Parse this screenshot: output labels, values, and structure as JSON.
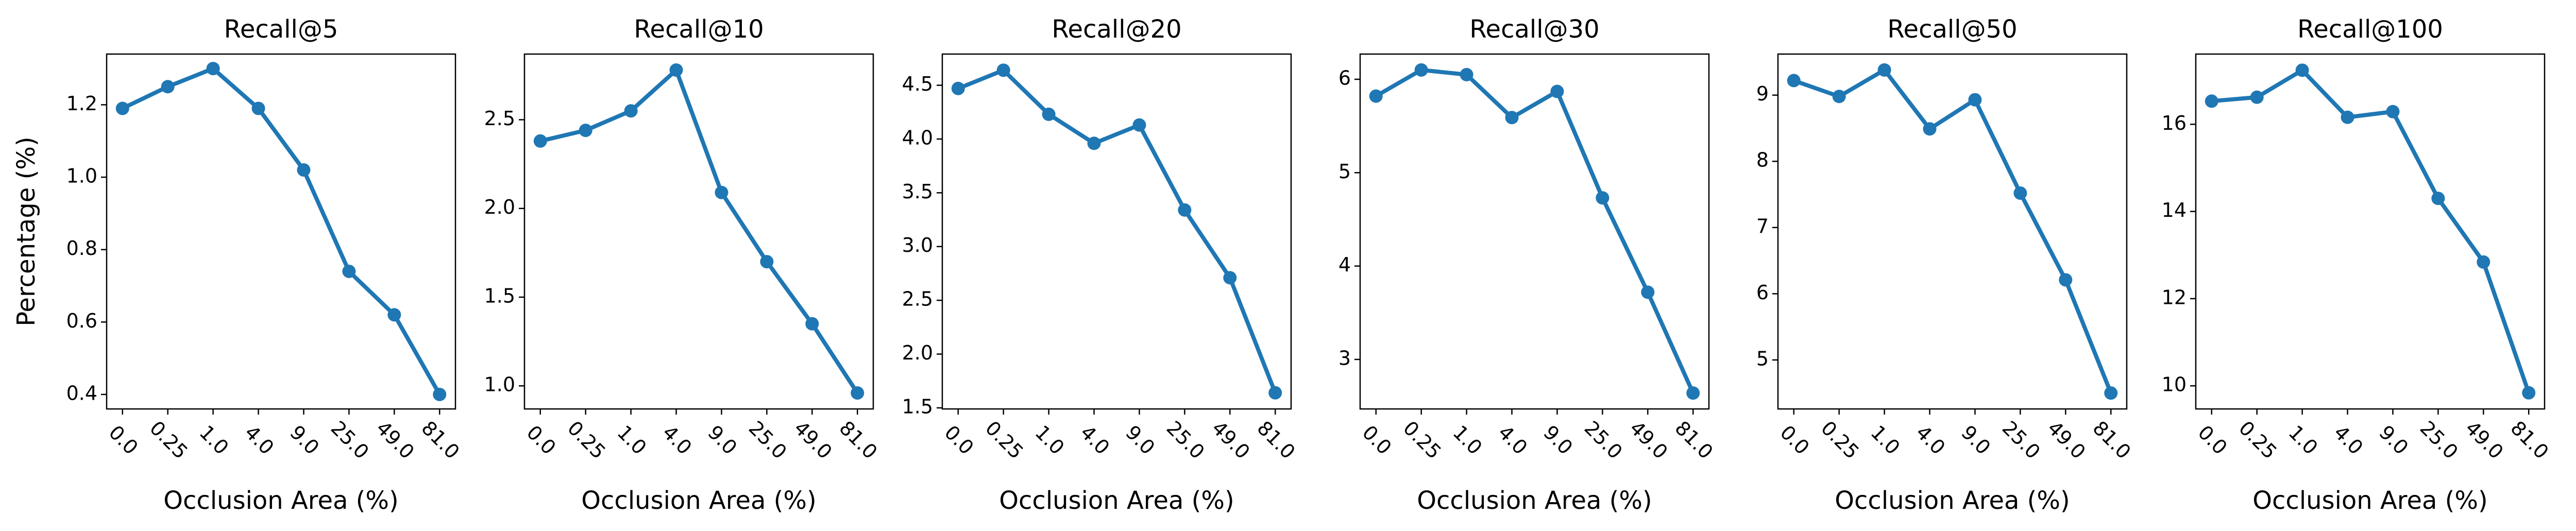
{
  "chart_data": [
    {
      "type": "line",
      "title": "Recall@5",
      "xlabel": "Occlusion Area (%)",
      "ylabel": "Percentage (%)",
      "categories": [
        "0.0",
        "0.25",
        "1.0",
        "4.0",
        "9.0",
        "25.0",
        "49.0",
        "81.0"
      ],
      "values": [
        1.19,
        1.25,
        1.3,
        1.19,
        1.02,
        0.74,
        0.62,
        0.4
      ],
      "color": "#1f77b4",
      "ylim": [
        0.36,
        1.34
      ],
      "yticks": [
        0.4,
        0.6,
        0.8,
        {
          "value": 1,
          "label": "1.0"
        },
        1.2
      ]
    },
    {
      "type": "line",
      "title": "Recall@10",
      "xlabel": "Occlusion Area (%)",
      "categories": [
        "0.0",
        "0.25",
        "1.0",
        "4.0",
        "9.0",
        "25.0",
        "49.0",
        "81.0"
      ],
      "values": [
        2.38,
        2.44,
        2.55,
        2.78,
        2.09,
        1.7,
        1.35,
        0.96
      ],
      "color": "#1f77b4",
      "ylim": [
        0.87,
        2.87
      ],
      "yticks": [
        {
          "value": 1,
          "label": "1.0"
        },
        1.5,
        {
          "value": 2,
          "label": "2.0"
        },
        2.5
      ]
    },
    {
      "type": "line",
      "title": "Recall@20",
      "xlabel": "Occlusion Area (%)",
      "categories": [
        "0.0",
        "0.25",
        "1.0",
        "4.0",
        "9.0",
        "25.0",
        "49.0",
        "81.0"
      ],
      "values": [
        4.47,
        4.64,
        4.23,
        3.96,
        4.13,
        3.34,
        2.71,
        1.64
      ],
      "color": "#1f77b4",
      "ylim": [
        1.49,
        4.79
      ],
      "yticks": [
        1.5,
        {
          "value": 2,
          "label": "2.0"
        },
        2.5,
        {
          "value": 3,
          "label": "3.0"
        },
        3.5,
        {
          "value": 4,
          "label": "4.0"
        },
        4.5
      ]
    },
    {
      "type": "line",
      "title": "Recall@30",
      "xlabel": "Occlusion Area (%)",
      "categories": [
        "0.0",
        "0.25",
        "1.0",
        "4.0",
        "9.0",
        "25.0",
        "49.0",
        "81.0"
      ],
      "values": [
        5.82,
        6.1,
        6.05,
        5.59,
        5.87,
        4.73,
        3.72,
        2.64
      ],
      "color": "#1f77b4",
      "ylim": [
        2.47,
        6.27
      ],
      "yticks": [
        3,
        4,
        5,
        6
      ]
    },
    {
      "type": "line",
      "title": "Recall@50",
      "xlabel": "Occlusion Area (%)",
      "categories": [
        "0.0",
        "0.25",
        "1.0",
        "4.0",
        "9.0",
        "25.0",
        "49.0",
        "81.0"
      ],
      "values": [
        9.22,
        8.98,
        9.38,
        8.49,
        8.93,
        7.52,
        6.21,
        4.5
      ],
      "color": "#1f77b4",
      "ylim": [
        4.26,
        9.62
      ],
      "yticks": [
        5,
        6,
        7,
        8,
        9
      ]
    },
    {
      "type": "line",
      "title": "Recall@100",
      "xlabel": "Occlusion Area (%)",
      "categories": [
        "0.0",
        "0.25",
        "1.0",
        "4.0",
        "9.0",
        "25.0",
        "49.0",
        "81.0"
      ],
      "values": [
        16.53,
        16.62,
        17.24,
        16.16,
        16.29,
        14.3,
        12.84,
        9.84
      ],
      "color": "#1f77b4",
      "ylim": [
        9.47,
        17.61
      ],
      "yticks": [
        10,
        12,
        14,
        16
      ]
    }
  ]
}
